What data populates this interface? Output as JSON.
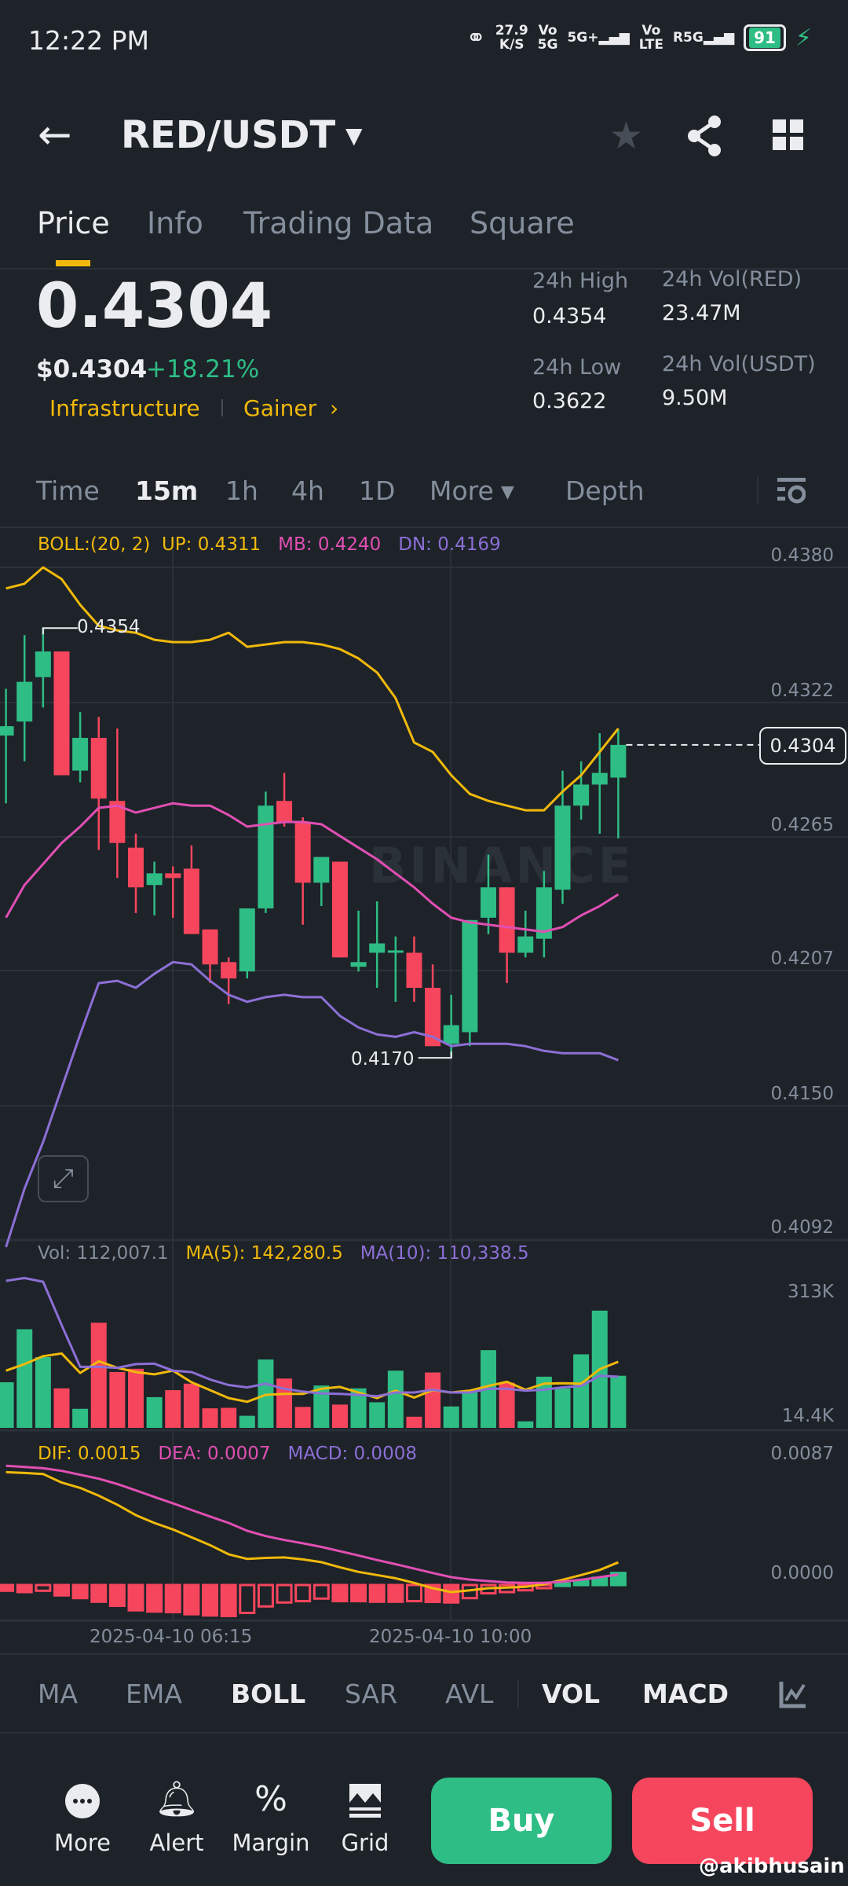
{
  "status_bar": {
    "time": "12:22 PM",
    "net_speed": "27.9",
    "net_unit": "K/S",
    "sim1_top": "Vo",
    "sim1_bottom": "5G",
    "sim1_net": "5G+",
    "sim2_top": "Vo",
    "sim2_bottom": "LTE",
    "sim2_net": "R5G",
    "battery": "91"
  },
  "header": {
    "title": "RED/USDT",
    "back_icon": "arrow-left",
    "icons": [
      "star-icon",
      "share-icon",
      "grid-icon"
    ]
  },
  "tabs": [
    {
      "label": "Price",
      "active": true
    },
    {
      "label": "Info"
    },
    {
      "label": "Trading Data"
    },
    {
      "label": "Square"
    }
  ],
  "ticker": {
    "last_price": "0.4304",
    "usd_price": "$0.4304",
    "change": "+18.21%",
    "tags": [
      "Infrastructure",
      "Gainer"
    ],
    "high_label": "24h High",
    "high": "0.4354",
    "low_label": "24h Low",
    "low": "0.3622",
    "vol_base_label": "24h Vol(RED)",
    "vol_base": "23.47M",
    "vol_quote_label": "24h Vol(USDT)",
    "vol_quote": "9.50M"
  },
  "timeframes": [
    "Time",
    "15m",
    "1h",
    "4h",
    "1D",
    "More",
    "Depth"
  ],
  "active_timeframe": "15m",
  "colors": {
    "up": "#2ebd85",
    "down": "#f6465d",
    "accent": "#f0b90b",
    "boll_up": "#f0b90b",
    "boll_mb": "#e04fb3",
    "boll_dn": "#8c6fd6"
  },
  "chart_data": [
    {
      "type": "candlestick",
      "legend": {
        "boll": "BOLL:(20, 2)",
        "up": "UP: 0.4311",
        "mb": "MB: 0.4240",
        "dn": "DN: 0.4169"
      },
      "y_ticks": [
        "0.4380",
        "0.4322",
        "0.4265",
        "0.4207",
        "0.4150",
        "0.4092"
      ],
      "ylim": [
        0.4092,
        0.438
      ],
      "x_ticks": [
        "2025-04-10 06:15",
        "2025-04-10 10:00"
      ],
      "current_price": "0.4304",
      "high_marker": "0.4354",
      "low_marker": "0.4170",
      "ohlc": [
        [
          0.4308,
          0.4328,
          0.4279,
          0.4312
        ],
        [
          0.4314,
          0.4351,
          0.4297,
          0.4331
        ],
        [
          0.4333,
          0.4354,
          0.432,
          0.4344
        ],
        [
          0.4344,
          0.4344,
          0.4291,
          0.4291
        ],
        [
          0.4293,
          0.4318,
          0.4288,
          0.4307
        ],
        [
          0.4307,
          0.4316,
          0.4259,
          0.4281
        ],
        [
          0.428,
          0.4311,
          0.4247,
          0.4262
        ],
        [
          0.426,
          0.4266,
          0.4232,
          0.4243
        ],
        [
          0.4244,
          0.4254,
          0.4231,
          0.4249
        ],
        [
          0.4249,
          0.4252,
          0.423,
          0.4247
        ],
        [
          0.4251,
          0.4261,
          0.4223,
          0.4223
        ],
        [
          0.4225,
          0.4225,
          0.4202,
          0.421
        ],
        [
          0.4211,
          0.4213,
          0.4193,
          0.4204
        ],
        [
          0.4207,
          0.4234,
          0.4204,
          0.4234
        ],
        [
          0.4234,
          0.4284,
          0.4232,
          0.4278
        ],
        [
          0.428,
          0.4292,
          0.4269,
          0.4271
        ],
        [
          0.4271,
          0.4273,
          0.4227,
          0.4245
        ],
        [
          0.4245,
          0.4256,
          0.4235,
          0.4256
        ],
        [
          0.4254,
          0.4254,
          0.4213,
          0.4213
        ],
        [
          0.4209,
          0.4233,
          0.4207,
          0.4211
        ],
        [
          0.4215,
          0.4237,
          0.42,
          0.4219
        ],
        [
          0.4215,
          0.4222,
          0.4194,
          0.4216
        ],
        [
          0.4215,
          0.4222,
          0.4194,
          0.42
        ],
        [
          0.42,
          0.421,
          0.4175,
          0.4175
        ],
        [
          0.4176,
          0.4197,
          0.417,
          0.4184
        ],
        [
          0.4181,
          0.4229,
          0.4175,
          0.4229
        ],
        [
          0.423,
          0.4257,
          0.4223,
          0.4243
        ],
        [
          0.4243,
          0.4243,
          0.4202,
          0.4215
        ],
        [
          0.4215,
          0.4233,
          0.4213,
          0.4222
        ],
        [
          0.4221,
          0.425,
          0.4213,
          0.4243
        ],
        [
          0.4242,
          0.4293,
          0.4236,
          0.4278
        ],
        [
          0.4278,
          0.4297,
          0.4272,
          0.4287
        ],
        [
          0.4287,
          0.4309,
          0.4266,
          0.4292
        ],
        [
          0.429,
          0.4311,
          0.4264,
          0.4304
        ]
      ],
      "boll_up": [
        0.4371,
        0.4373,
        0.438,
        0.4375,
        0.4364,
        0.4355,
        0.4353,
        0.4352,
        0.4349,
        0.4348,
        0.4348,
        0.4349,
        0.4352,
        0.4346,
        0.4347,
        0.4348,
        0.4348,
        0.4347,
        0.4345,
        0.4341,
        0.4335,
        0.4324,
        0.4305,
        0.4301,
        0.4291,
        0.4283,
        0.428,
        0.4278,
        0.4276,
        0.4276,
        0.4284,
        0.4291,
        0.4301,
        0.4311
      ],
      "boll_mb": [
        0.423,
        0.4244,
        0.4253,
        0.4262,
        0.4269,
        0.4277,
        0.4278,
        0.4275,
        0.4277,
        0.4279,
        0.4278,
        0.4278,
        0.4274,
        0.4269,
        0.427,
        0.4271,
        0.4271,
        0.427,
        0.4265,
        0.426,
        0.4255,
        0.4249,
        0.4243,
        0.4236,
        0.423,
        0.4228,
        0.4227,
        0.4226,
        0.4225,
        0.4224,
        0.4226,
        0.4231,
        0.4235,
        0.424
      ],
      "boll_dn": [
        0.4089,
        0.4114,
        0.4134,
        0.4157,
        0.418,
        0.4202,
        0.4203,
        0.42,
        0.4206,
        0.4211,
        0.421,
        0.4203,
        0.4197,
        0.4194,
        0.4196,
        0.4197,
        0.4196,
        0.4196,
        0.4188,
        0.4183,
        0.418,
        0.4179,
        0.4181,
        0.4179,
        0.4175,
        0.4176,
        0.4176,
        0.4176,
        0.4175,
        0.4173,
        0.4172,
        0.4172,
        0.4172,
        0.4169
      ]
    },
    {
      "type": "bar",
      "legend": {
        "vol": "Vol: 112,007.1",
        "ma5": "MA(5): 142,280.5",
        "ma10": "MA(10): 110,338.5"
      },
      "y_ticks": [
        "313K",
        "14.4K"
      ],
      "volume_k": [
        98,
        212,
        152,
        85,
        41,
        226,
        120,
        127,
        66,
        81,
        95,
        42,
        43,
        26,
        147,
        106,
        45,
        91,
        50,
        85,
        55,
        123,
        24,
        119,
        46,
        76,
        167,
        97,
        14,
        110,
        85,
        158,
        252,
        112
      ],
      "ma5_k": [
        123,
        137,
        154,
        160,
        118,
        143,
        129,
        120,
        115,
        123,
        98,
        81,
        64,
        56,
        71,
        73,
        73,
        84,
        88,
        76,
        64,
        80,
        65,
        81,
        76,
        80,
        90,
        99,
        82,
        95,
        96,
        95,
        126,
        142
      ],
      "ma10_k": [
        316,
        322,
        314,
        221,
        131,
        131,
        129,
        137,
        138,
        123,
        120,
        104,
        92,
        87,
        95,
        84,
        78,
        74,
        73,
        71,
        68,
        76,
        76,
        82,
        76,
        76,
        84,
        84,
        80,
        82,
        87,
        90,
        112,
        110
      ]
    },
    {
      "type": "bar",
      "legend": {
        "dif": "DIF: 0.0015",
        "dea": "DEA: 0.0007",
        "macd": "MACD: 0.0008"
      },
      "y_ticks": [
        "0.0087",
        "0.0000"
      ],
      "dif": [
        0.00749,
        0.00744,
        0.00737,
        0.0068,
        0.00645,
        0.00593,
        0.00533,
        0.00464,
        0.00412,
        0.00369,
        0.00317,
        0.00265,
        0.00204,
        0.00173,
        0.0018,
        0.00183,
        0.0017,
        0.00152,
        0.00118,
        0.00087,
        0.00066,
        0.00045,
        0.00014,
        -0.00021,
        -0.00047,
        -0.00035,
        -0.00021,
        -0.00017,
        -0.00012,
        5e-05,
        0.00035,
        0.00066,
        0.001,
        0.0015
      ],
      "dea": [
        0.00792,
        0.00784,
        0.00775,
        0.00758,
        0.00732,
        0.00706,
        0.00671,
        0.00628,
        0.00585,
        0.00542,
        0.00498,
        0.00455,
        0.00412,
        0.0036,
        0.00325,
        0.00299,
        0.00277,
        0.00253,
        0.00225,
        0.00196,
        0.00166,
        0.00138,
        0.00109,
        0.0008,
        0.00052,
        0.00036,
        0.00026,
        0.00017,
        0.00014,
        0.00014,
        0.00022,
        0.00035,
        0.00052,
        0.0007
      ],
      "macd": [
        -0.00038,
        -0.00047,
        -0.00038,
        -0.00069,
        -0.00087,
        -0.00111,
        -0.00138,
        -0.00168,
        -0.00176,
        -0.0018,
        -0.00194,
        -0.00202,
        -0.00206,
        -0.00185,
        -0.00142,
        -0.00116,
        -0.00107,
        -0.0009,
        -0.00107,
        -0.00107,
        -0.00111,
        -0.00111,
        -0.00107,
        -0.00112,
        -0.00116,
        -0.00087,
        -0.00055,
        -0.00047,
        -0.00035,
        -0.00021,
        0.0001,
        0.00028,
        0.00048,
        0.0008
      ]
    }
  ],
  "watermark": "BINANCE",
  "indicators": {
    "main": [
      "MA",
      "EMA",
      "BOLL",
      "SAR",
      "AVL"
    ],
    "sub": [
      "VOL",
      "MACD"
    ],
    "active": [
      "BOLL",
      "VOL",
      "MACD"
    ]
  },
  "bottom_bar": {
    "items": [
      "More",
      "Alert",
      "Margin",
      "Grid"
    ],
    "buy": "Buy",
    "sell": "Sell"
  },
  "credit": "@akibhusain"
}
